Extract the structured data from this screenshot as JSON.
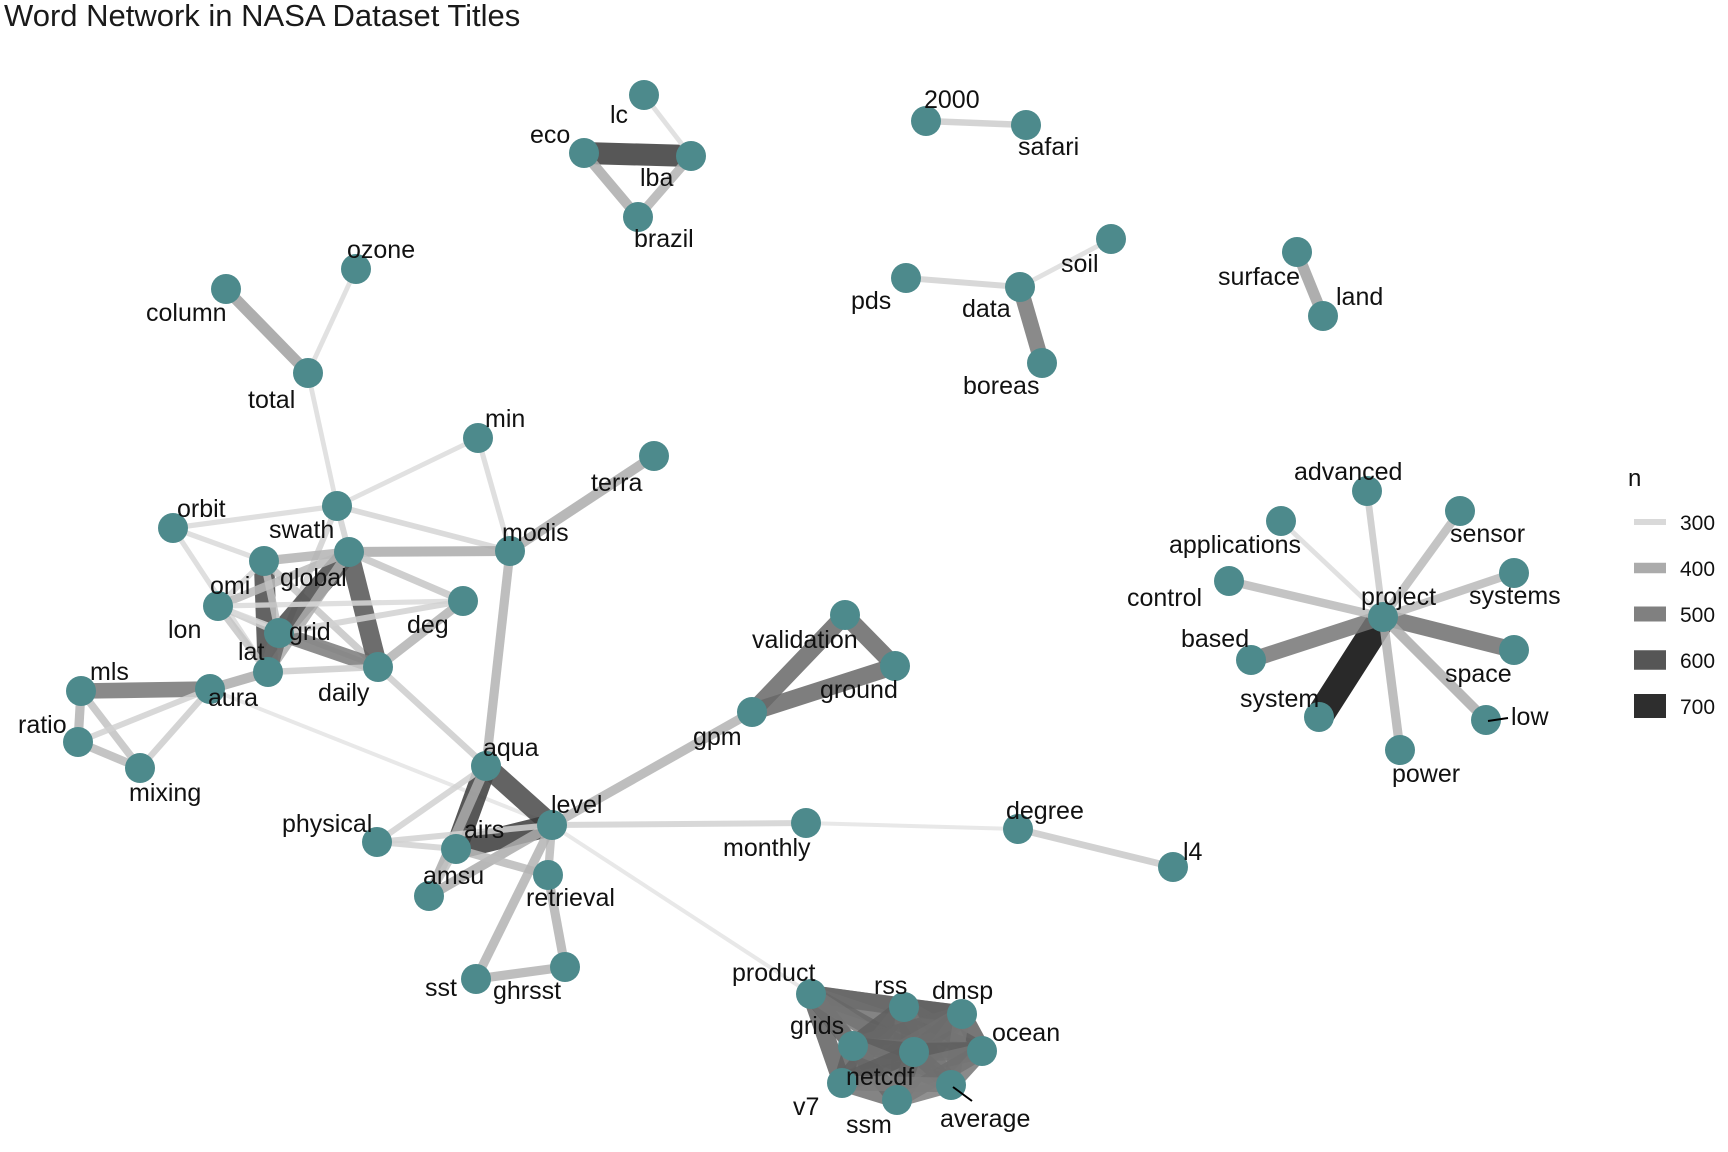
{
  "title": "Word Network in NASA Dataset Titles",
  "node_color": "#4d8a8c",
  "legend": {
    "title": "n",
    "items": [
      {
        "label": "300",
        "n": 300,
        "color": "#d9d9d9"
      },
      {
        "label": "400",
        "n": 400,
        "color": "#ababab"
      },
      {
        "label": "500",
        "n": 500,
        "color": "#808080"
      },
      {
        "label": "600",
        "n": 600,
        "color": "#565656"
      },
      {
        "label": "700",
        "n": 700,
        "color": "#2e2e2e"
      }
    ]
  },
  "nodes": [
    {
      "id": "lc",
      "label": "lc"
    },
    {
      "id": "eco",
      "label": "eco"
    },
    {
      "id": "lba",
      "label": "lba"
    },
    {
      "id": "brazil",
      "label": "brazil"
    },
    {
      "id": "2000",
      "label": "2000"
    },
    {
      "id": "safari",
      "label": "safari"
    },
    {
      "id": "soil",
      "label": "soil"
    },
    {
      "id": "pds",
      "label": "pds"
    },
    {
      "id": "data",
      "label": "data"
    },
    {
      "id": "boreas",
      "label": "boreas"
    },
    {
      "id": "surface",
      "label": "surface"
    },
    {
      "id": "land",
      "label": "land"
    },
    {
      "id": "ozone",
      "label": "ozone"
    },
    {
      "id": "column",
      "label": "column"
    },
    {
      "id": "total",
      "label": "total"
    },
    {
      "id": "min",
      "label": "min"
    },
    {
      "id": "terra",
      "label": "terra"
    },
    {
      "id": "orbit",
      "label": "orbit"
    },
    {
      "id": "swath",
      "label": "swath"
    },
    {
      "id": "modis",
      "label": "modis"
    },
    {
      "id": "omi",
      "label": "omi"
    },
    {
      "id": "global",
      "label": "global"
    },
    {
      "id": "deg",
      "label": "deg"
    },
    {
      "id": "lon",
      "label": "lon"
    },
    {
      "id": "grid",
      "label": "grid"
    },
    {
      "id": "lat",
      "label": "lat"
    },
    {
      "id": "daily",
      "label": "daily"
    },
    {
      "id": "mls",
      "label": "mls"
    },
    {
      "id": "aura",
      "label": "aura"
    },
    {
      "id": "ratio",
      "label": "ratio"
    },
    {
      "id": "mixing",
      "label": "mixing"
    },
    {
      "id": "aqua",
      "label": "aqua"
    },
    {
      "id": "physical",
      "label": "physical"
    },
    {
      "id": "airs",
      "label": "airs"
    },
    {
      "id": "level",
      "label": "level"
    },
    {
      "id": "amsu",
      "label": "amsu"
    },
    {
      "id": "retrieval",
      "label": "retrieval"
    },
    {
      "id": "sst",
      "label": "sst"
    },
    {
      "id": "ghrsst",
      "label": "ghrsst"
    },
    {
      "id": "validation",
      "label": "validation"
    },
    {
      "id": "ground",
      "label": "ground"
    },
    {
      "id": "gpm",
      "label": "gpm"
    },
    {
      "id": "monthly",
      "label": "monthly"
    },
    {
      "id": "degree",
      "label": "degree"
    },
    {
      "id": "l4",
      "label": "l4"
    },
    {
      "id": "product",
      "label": "product"
    },
    {
      "id": "rss",
      "label": "rss"
    },
    {
      "id": "dmsp",
      "label": "dmsp"
    },
    {
      "id": "grids",
      "label": "grids"
    },
    {
      "id": "ocean",
      "label": "ocean"
    },
    {
      "id": "netcdf",
      "label": "netcdf"
    },
    {
      "id": "v7",
      "label": "v7"
    },
    {
      "id": "ssm",
      "label": "ssm"
    },
    {
      "id": "average",
      "label": "average"
    },
    {
      "id": "advanced",
      "label": "advanced"
    },
    {
      "id": "sensor",
      "label": "sensor"
    },
    {
      "id": "applications",
      "label": "applications"
    },
    {
      "id": "systems",
      "label": "systems"
    },
    {
      "id": "control",
      "label": "control"
    },
    {
      "id": "project",
      "label": "project"
    },
    {
      "id": "based",
      "label": "based"
    },
    {
      "id": "space",
      "label": "space"
    },
    {
      "id": "system",
      "label": "system"
    },
    {
      "id": "low",
      "label": "low"
    },
    {
      "id": "power",
      "label": "power"
    }
  ],
  "edges": [
    {
      "from": "eco",
      "to": "lba",
      "n": 720
    },
    {
      "from": "eco",
      "to": "brazil",
      "n": 420
    },
    {
      "from": "lba",
      "to": "brazil",
      "n": 400
    },
    {
      "from": "lc",
      "to": "lba",
      "n": 290
    },
    {
      "from": "2000",
      "to": "safari",
      "n": 330
    },
    {
      "from": "pds",
      "to": "data",
      "n": 320
    },
    {
      "from": "soil",
      "to": "data",
      "n": 290
    },
    {
      "from": "data",
      "to": "boreas",
      "n": 560
    },
    {
      "from": "surface",
      "to": "land",
      "n": 450
    },
    {
      "from": "column",
      "to": "total",
      "n": 450
    },
    {
      "from": "ozone",
      "to": "total",
      "n": 290
    },
    {
      "from": "total",
      "to": "swath",
      "n": 290
    },
    {
      "from": "min",
      "to": "swath",
      "n": 290
    },
    {
      "from": "min",
      "to": "modis",
      "n": 300
    },
    {
      "from": "terra",
      "to": "modis",
      "n": 420
    },
    {
      "from": "orbit",
      "to": "swath",
      "n": 300
    },
    {
      "from": "orbit",
      "to": "omi",
      "n": 300
    },
    {
      "from": "orbit",
      "to": "lat",
      "n": 300
    },
    {
      "from": "swath",
      "to": "modis",
      "n": 310
    },
    {
      "from": "swath",
      "to": "lat",
      "n": 320
    },
    {
      "from": "swath",
      "to": "global",
      "n": 320
    },
    {
      "from": "omi",
      "to": "lat",
      "n": 680
    },
    {
      "from": "omi",
      "to": "global",
      "n": 400
    },
    {
      "from": "omi",
      "to": "lon",
      "n": 310
    },
    {
      "from": "omi",
      "to": "daily",
      "n": 350
    },
    {
      "from": "global",
      "to": "modis",
      "n": 420
    },
    {
      "from": "global",
      "to": "deg",
      "n": 350
    },
    {
      "from": "global",
      "to": "grid",
      "n": 680
    },
    {
      "from": "global",
      "to": "daily",
      "n": 650
    },
    {
      "from": "global",
      "to": "lat",
      "n": 420
    },
    {
      "from": "global",
      "to": "lon",
      "n": 380
    },
    {
      "from": "lon",
      "to": "grid",
      "n": 330
    },
    {
      "from": "lon",
      "to": "deg",
      "n": 300
    },
    {
      "from": "lon",
      "to": "lat",
      "n": 350
    },
    {
      "from": "lon",
      "to": "daily",
      "n": 300
    },
    {
      "from": "grid",
      "to": "lat",
      "n": 600
    },
    {
      "from": "grid",
      "to": "daily",
      "n": 550
    },
    {
      "from": "grid",
      "to": "deg",
      "n": 320
    },
    {
      "from": "grid",
      "to": "omi",
      "n": 360
    },
    {
      "from": "daily",
      "to": "deg",
      "n": 400
    },
    {
      "from": "daily",
      "to": "lat",
      "n": 330
    },
    {
      "from": "daily",
      "to": "aqua",
      "n": 330
    },
    {
      "from": "lat",
      "to": "aura",
      "n": 420
    },
    {
      "from": "mls",
      "to": "aura",
      "n": 560
    },
    {
      "from": "mls",
      "to": "ratio",
      "n": 400
    },
    {
      "from": "mls",
      "to": "mixing",
      "n": 360
    },
    {
      "from": "ratio",
      "to": "mixing",
      "n": 380
    },
    {
      "from": "ratio",
      "to": "aura",
      "n": 320
    },
    {
      "from": "mixing",
      "to": "aura",
      "n": 330
    },
    {
      "from": "aura",
      "to": "level",
      "n": 270
    },
    {
      "from": "modis",
      "to": "aqua",
      "n": 400
    },
    {
      "from": "aqua",
      "to": "airs",
      "n": 720
    },
    {
      "from": "aqua",
      "to": "level",
      "n": 680
    },
    {
      "from": "aqua",
      "to": "amsu",
      "n": 420
    },
    {
      "from": "aqua",
      "to": "physical",
      "n": 320
    },
    {
      "from": "airs",
      "to": "level",
      "n": 720
    },
    {
      "from": "airs",
      "to": "physical",
      "n": 320
    },
    {
      "from": "airs",
      "to": "amsu",
      "n": 360
    },
    {
      "from": "amsu",
      "to": "level",
      "n": 420
    },
    {
      "from": "physical",
      "to": "level",
      "n": 320
    },
    {
      "from": "level",
      "to": "retrieval",
      "n": 380
    },
    {
      "from": "airs",
      "to": "retrieval",
      "n": 380
    },
    {
      "from": "level",
      "to": "sst",
      "n": 400
    },
    {
      "from": "retrieval",
      "to": "ghrsst",
      "n": 400
    },
    {
      "from": "sst",
      "to": "ghrsst",
      "n": 400
    },
    {
      "from": "level",
      "to": "gpm",
      "n": 400
    },
    {
      "from": "level",
      "to": "monthly",
      "n": 320
    },
    {
      "from": "level",
      "to": "product",
      "n": 270
    },
    {
      "from": "validation",
      "to": "ground",
      "n": 600
    },
    {
      "from": "validation",
      "to": "gpm",
      "n": 600
    },
    {
      "from": "ground",
      "to": "gpm",
      "n": 600
    },
    {
      "from": "monthly",
      "to": "degree",
      "n": 270
    },
    {
      "from": "degree",
      "to": "l4",
      "n": 340
    },
    {
      "from": "product",
      "to": "rss",
      "n": 620
    },
    {
      "from": "product",
      "to": "dmsp",
      "n": 600
    },
    {
      "from": "product",
      "to": "grids",
      "n": 600
    },
    {
      "from": "product",
      "to": "ocean",
      "n": 580
    },
    {
      "from": "product",
      "to": "netcdf",
      "n": 600
    },
    {
      "from": "product",
      "to": "v7",
      "n": 620
    },
    {
      "from": "product",
      "to": "ssm",
      "n": 580
    },
    {
      "from": "product",
      "to": "average",
      "n": 560
    },
    {
      "from": "rss",
      "to": "dmsp",
      "n": 620
    },
    {
      "from": "rss",
      "to": "grids",
      "n": 620
    },
    {
      "from": "rss",
      "to": "ocean",
      "n": 600
    },
    {
      "from": "rss",
      "to": "netcdf",
      "n": 620
    },
    {
      "from": "rss",
      "to": "v7",
      "n": 600
    },
    {
      "from": "rss",
      "to": "ssm",
      "n": 580
    },
    {
      "from": "rss",
      "to": "average",
      "n": 560
    },
    {
      "from": "dmsp",
      "to": "grids",
      "n": 600
    },
    {
      "from": "dmsp",
      "to": "ocean",
      "n": 620
    },
    {
      "from": "dmsp",
      "to": "netcdf",
      "n": 620
    },
    {
      "from": "dmsp",
      "to": "v7",
      "n": 580
    },
    {
      "from": "dmsp",
      "to": "ssm",
      "n": 580
    },
    {
      "from": "dmsp",
      "to": "average",
      "n": 560
    },
    {
      "from": "grids",
      "to": "ocean",
      "n": 580
    },
    {
      "from": "grids",
      "to": "netcdf",
      "n": 620
    },
    {
      "from": "grids",
      "to": "v7",
      "n": 620
    },
    {
      "from": "grids",
      "to": "ssm",
      "n": 600
    },
    {
      "from": "grids",
      "to": "average",
      "n": 560
    },
    {
      "from": "ocean",
      "to": "netcdf",
      "n": 620
    },
    {
      "from": "ocean",
      "to": "v7",
      "n": 560
    },
    {
      "from": "ocean",
      "to": "ssm",
      "n": 580
    },
    {
      "from": "ocean",
      "to": "average",
      "n": 560
    },
    {
      "from": "netcdf",
      "to": "v7",
      "n": 620
    },
    {
      "from": "netcdf",
      "to": "ssm",
      "n": 600
    },
    {
      "from": "netcdf",
      "to": "average",
      "n": 580
    },
    {
      "from": "v7",
      "to": "ssm",
      "n": 580
    },
    {
      "from": "v7",
      "to": "average",
      "n": 540
    },
    {
      "from": "ssm",
      "to": "average",
      "n": 540
    },
    {
      "from": "project",
      "to": "system",
      "n": 860
    },
    {
      "from": "project",
      "to": "space",
      "n": 580
    },
    {
      "from": "project",
      "to": "based",
      "n": 560
    },
    {
      "from": "project",
      "to": "control",
      "n": 380
    },
    {
      "from": "project",
      "to": "applications",
      "n": 290
    },
    {
      "from": "project",
      "to": "advanced",
      "n": 340
    },
    {
      "from": "project",
      "to": "sensor",
      "n": 380
    },
    {
      "from": "project",
      "to": "systems",
      "n": 380
    },
    {
      "from": "project",
      "to": "low",
      "n": 420
    },
    {
      "from": "project",
      "to": "power",
      "n": 400
    }
  ]
}
